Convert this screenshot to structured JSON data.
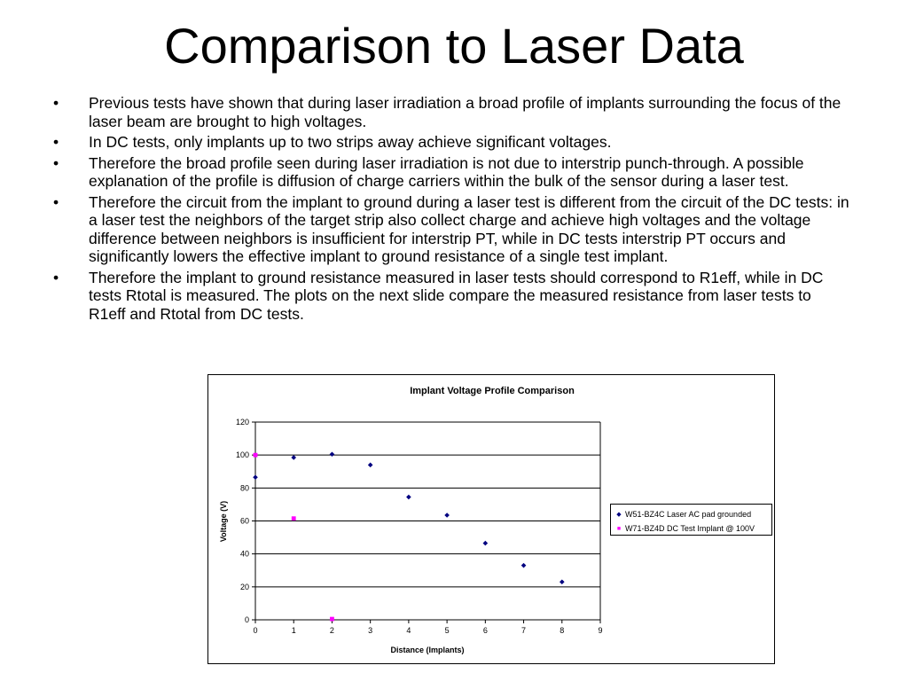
{
  "title": "Comparison to Laser Data",
  "bullets": [
    "Previous tests have shown that during laser irradiation a broad profile of implants surrounding the focus of the laser beam are brought to high voltages.",
    "In DC tests, only implants up to two strips away achieve significant voltages.",
    "Therefore the broad profile seen during laser irradiation is not due to interstrip punch-through. A possible explanation of the profile is diffusion of charge carriers within the bulk of the sensor during a laser test.",
    "Therefore the circuit from the implant to ground during a laser test is different from the circuit of the DC tests: in a laser test the neighbors of the target strip also collect charge and achieve high voltages and the voltage difference between neighbors is insufficient for interstrip PT, while in DC tests interstrip PT occurs and significantly lowers the effective implant to ground resistance of a single test implant.",
    "Therefore the implant to ground resistance measured in laser tests should correspond to R1eff, while in DC tests Rtotal is measured. The plots on the next slide compare the measured resistance from laser tests to R1eff and Rtotal from DC tests."
  ],
  "bullet_symbol": "•",
  "chart_data": {
    "type": "scatter",
    "title": "Implant Voltage Profile Comparison",
    "xlabel": "Distance (Implants)",
    "ylabel": "Voltage (V)",
    "xlim": [
      0,
      9
    ],
    "ylim": [
      0,
      120
    ],
    "xticks": [
      0,
      1,
      2,
      3,
      4,
      5,
      6,
      7,
      8,
      9
    ],
    "yticks": [
      0,
      20,
      40,
      60,
      80,
      100,
      120
    ],
    "grid": "horizontal",
    "legend_position": "right",
    "series": [
      {
        "name": "W51-BZ4C Laser AC pad grounded",
        "color": "#000080",
        "marker": "diamond",
        "x": [
          0,
          1,
          2,
          3,
          4,
          5,
          6,
          7,
          8
        ],
        "y": [
          86.5,
          98.5,
          100.5,
          94,
          74.5,
          63.5,
          46.5,
          33,
          23
        ]
      },
      {
        "name": "W71-BZ4D DC Test Implant @ 100V",
        "color": "#ff00ff",
        "marker": "square",
        "x": [
          0,
          1,
          2
        ],
        "y": [
          100,
          61.5,
          0.5
        ]
      }
    ]
  }
}
